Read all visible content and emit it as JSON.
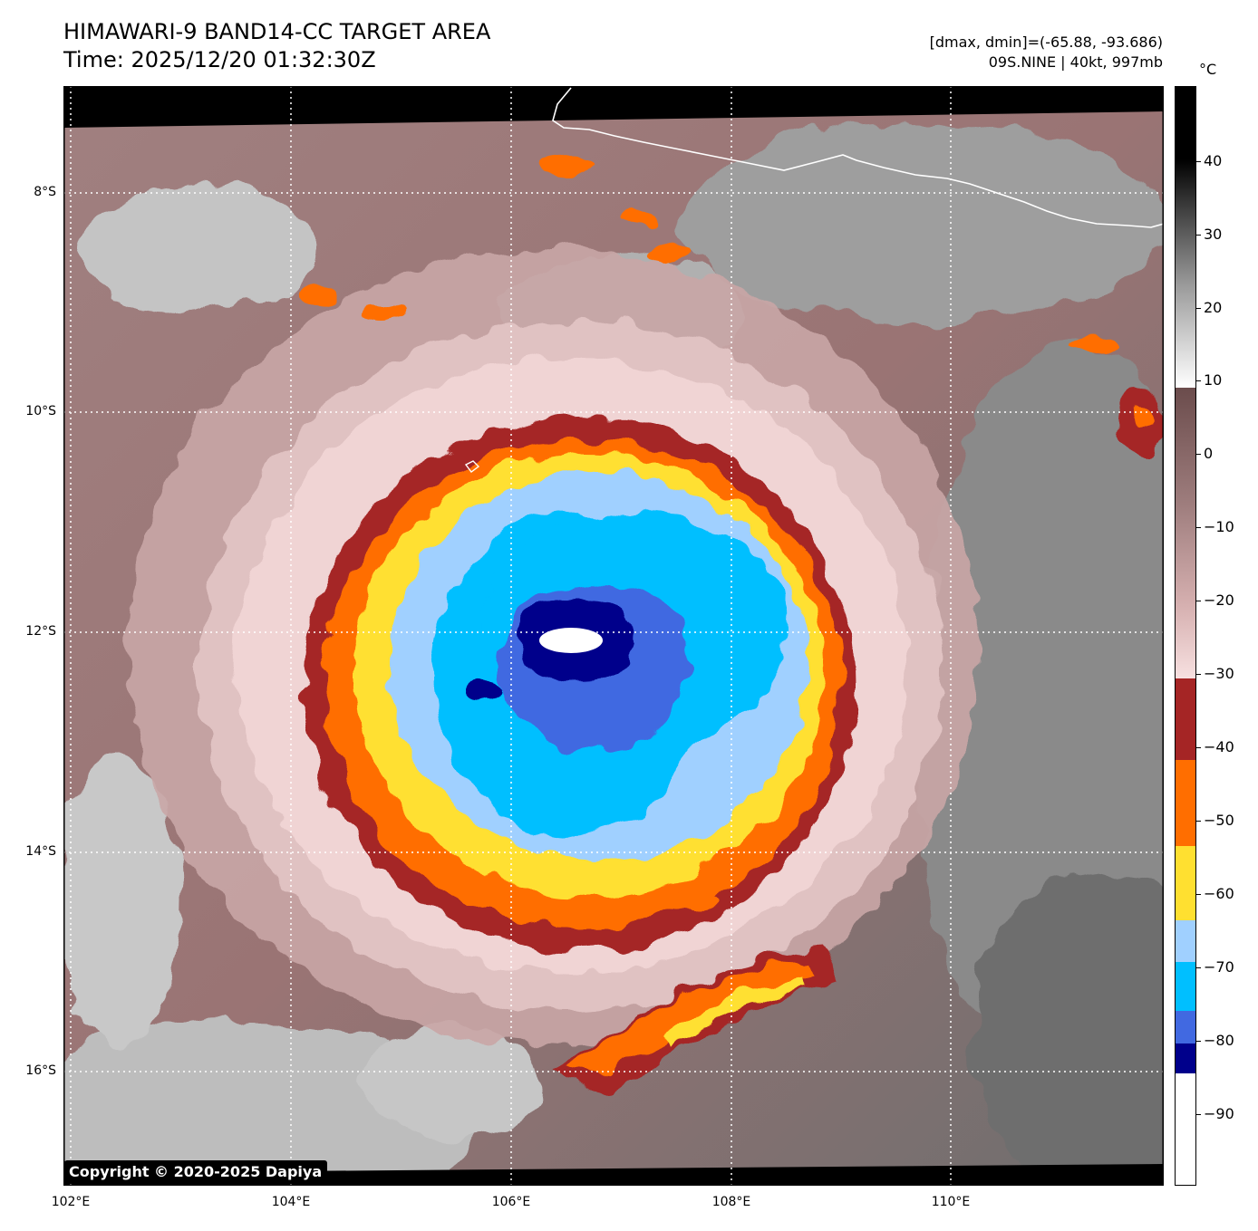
{
  "title": {
    "line1": "HIMAWARI-9 BAND14-CC TARGET AREA",
    "line2": "Time: 2025/12/20 01:32:30Z"
  },
  "info": {
    "range": "[dmax, dmin]=(-65.88, -93.686)",
    "storm": "09S.NINE | 40kt, 997mb"
  },
  "axes": {
    "lat_labels": [
      "8°S",
      "10°S",
      "12°S",
      "14°S",
      "16°S"
    ],
    "lon_labels": [
      "102°E",
      "104°E",
      "106°E",
      "108°E",
      "110°E"
    ]
  },
  "colorbar": {
    "unit": "°C",
    "labels": [
      "40",
      "30",
      "20",
      "10",
      "0",
      "−10",
      "−20",
      "−30",
      "−40",
      "−50",
      "−60",
      "−70",
      "−80",
      "−90"
    ],
    "colors": {
      "gt_40": "#000000",
      "gray_30": "#4a4a4a",
      "gray_20": "#9a9a9a",
      "white_10": "#ffffff",
      "brown_0": "#7a5c5c",
      "rose_m20": "#e8c4c4",
      "red_m30": "#a52525",
      "orange_m40": "#ff6e00",
      "yellow_m50": "#ffe030",
      "lightblue_m60": "#a0d0ff",
      "cyan_m70": "#00bfff",
      "royal_m80": "#4169e1",
      "navy_m85": "#00008b",
      "white_m90": "#ffffff"
    }
  },
  "map": {
    "coastline_color": "#ffffff",
    "grid_color": "#ffffff"
  },
  "copyright": "Copyright © 2020-2025 Dapiya"
}
